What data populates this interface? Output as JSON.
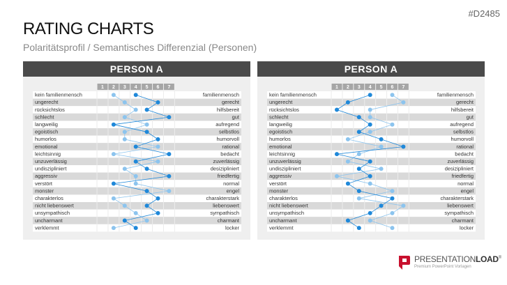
{
  "header": {
    "code": "#D2485",
    "title": "RATING CHARTS",
    "subtitle": "Polaritätsprofil / Semantisches Differenzial (Personen)"
  },
  "logo": {
    "brand_light": "PRESENTATION",
    "brand_bold": "LOAD",
    "mark": "®",
    "tagline": "Premium PowerPoint Vorlagen",
    "color": "#c8102e"
  },
  "colors": {
    "header_bg": "#4a4a4a",
    "scale_bg": "#a6a6a6",
    "row_gray": "#d9d9d9",
    "dark_series": "#1f88d9",
    "light_series": "#8cc4ee"
  },
  "chart_data": [
    {
      "type": "line",
      "title": "PERSON A",
      "scale": [
        "1",
        "2",
        "3",
        "4",
        "5",
        "6",
        "7"
      ],
      "left_labels": [
        "kein familienmensch",
        "ungerecht",
        "rücksichtslos",
        "schlecht",
        "langweilig",
        "egoistisch",
        "humorlos",
        "emotional",
        "leichtsinnig",
        "unzuverlässig",
        "undiszipliniert",
        "aggressiv",
        "verstört",
        "monster",
        "charakterlos",
        "nicht liebenswert",
        "unsympathisch",
        "uncharmant",
        "verklemmt"
      ],
      "right_labels": [
        "familienmensch",
        "gerecht",
        "hilfsbereit",
        "gut",
        "aufregend",
        "selbstlos",
        "humorvoll",
        "rational",
        "bedacht",
        "zuverlässig",
        "desizipliniert",
        "friedfertig",
        "normal",
        "engel",
        "charakterstark",
        "liebenswert",
        "sympathisch",
        "charmant",
        "locker"
      ],
      "series": [
        {
          "color": "#1f88d9",
          "values": [
            4,
            6,
            5,
            7,
            2,
            5,
            6,
            4,
            7,
            4,
            5,
            7,
            2,
            5,
            6,
            5,
            6,
            3,
            4
          ]
        },
        {
          "color": "#8cc4ee",
          "values": [
            2,
            3,
            4,
            3,
            5,
            3,
            3,
            6,
            2,
            6,
            3,
            4,
            4,
            7,
            2,
            3,
            4,
            5,
            2
          ]
        }
      ]
    },
    {
      "type": "line",
      "title": "PERSON A",
      "scale": [
        "1",
        "2",
        "3",
        "4",
        "5",
        "6",
        "7"
      ],
      "left_labels": [
        "kein familienmensch",
        "ungerecht",
        "rücksichtslos",
        "schlecht",
        "langweilig",
        "egoistisch",
        "humorlos",
        "emotional",
        "leichtsinnig",
        "unzuverlässig",
        "undiszipliniert",
        "aggressiv",
        "verstört",
        "monster",
        "charakterlos",
        "nicht liebenswert",
        "unsympathisch",
        "uncharmant",
        "verklemmt"
      ],
      "right_labels": [
        "familienmensch",
        "gerecht",
        "hilfsbereit",
        "gut",
        "aufregend",
        "selbstlos",
        "humorvoll",
        "rational",
        "bedacht",
        "zuverlässig",
        "desizipliniert",
        "friedfertig",
        "normal",
        "engel",
        "charakterstark",
        "liebenswert",
        "sympathisch",
        "charmant",
        "locker"
      ],
      "series": [
        {
          "color": "#1f88d9",
          "values": [
            4,
            2,
            1,
            3,
            4,
            3,
            5,
            7,
            1,
            4,
            3,
            4,
            2,
            3,
            6,
            5,
            4,
            2,
            3
          ]
        },
        {
          "color": "#8cc4ee",
          "values": [
            6,
            7,
            4,
            4,
            6,
            4,
            2,
            5,
            3,
            2,
            5,
            1,
            4,
            6,
            3,
            7,
            6,
            4,
            6
          ]
        }
      ]
    }
  ]
}
